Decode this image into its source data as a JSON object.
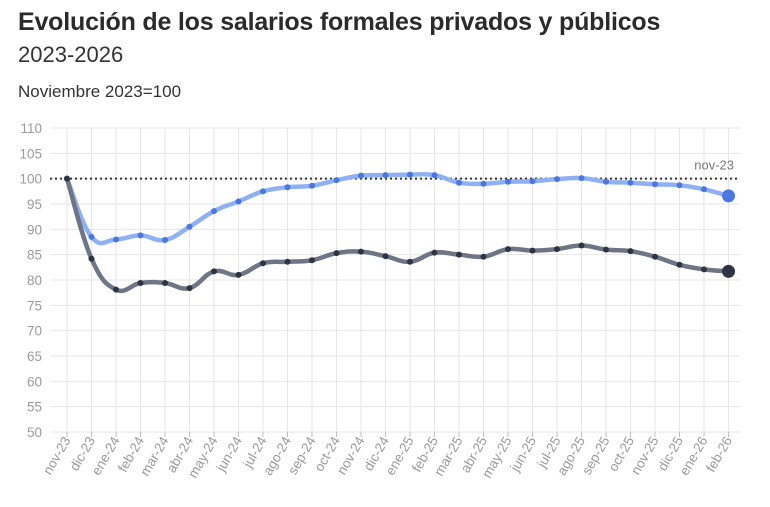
{
  "header": {
    "title": "Evolución de los salarios formales privados y públicos",
    "subtitle": "2023-2026",
    "note": "Noviembre 2023=100"
  },
  "colors": {
    "privados_line": "#8fb0f2",
    "privados_point": "#4a78e0",
    "publicos_line": "#6e7585",
    "publicos_point": "#2f3442",
    "reference": "#333333"
  },
  "chart_data": {
    "type": "line",
    "title": "Evolución de los salarios formales privados y públicos",
    "subtitle": "2023-2026",
    "ylabel": "",
    "xlabel": "",
    "ylim": [
      50,
      110
    ],
    "yticks": [
      110,
      105,
      100,
      95,
      90,
      85,
      80,
      75,
      70,
      65,
      60,
      55,
      50
    ],
    "grid": true,
    "categories": [
      "nov-23",
      "dic-23",
      "ene-24",
      "feb-24",
      "mar-24",
      "abr-24",
      "may-24",
      "jun-24",
      "jul-24",
      "ago-24",
      "sep-24",
      "oct-24",
      "nov-24",
      "dic-24",
      "ene-25",
      "feb-25",
      "mar-25",
      "abr-25",
      "may-25",
      "jun-25",
      "jul-25",
      "ago-25",
      "sep-25",
      "oct-25",
      "nov-25",
      "dic-25",
      "ene-26",
      "feb-26"
    ],
    "reference_line": {
      "value": 100,
      "label": "nov-23"
    },
    "series": [
      {
        "values": [
          100,
          88.5,
          88.0,
          88.8,
          87.9,
          90.5,
          93.6,
          95.5,
          97.5,
          98.3,
          98.6,
          99.7,
          100.6,
          100.7,
          100.8,
          100.7,
          99.2,
          99.0,
          99.4,
          99.5,
          99.9,
          100.1,
          99.4,
          99.2,
          98.9,
          98.7,
          97.9,
          96.6
        ]
      },
      {
        "values": [
          100,
          84.2,
          78.1,
          79.4,
          79.4,
          78.4,
          81.7,
          81.0,
          83.3,
          83.6,
          83.9,
          85.3,
          85.6,
          84.7,
          83.6,
          85.4,
          85.0,
          84.6,
          86.1,
          85.8,
          86.1,
          86.8,
          86.0,
          85.7,
          84.6,
          83.0,
          82.1,
          81.7
        ]
      }
    ]
  }
}
